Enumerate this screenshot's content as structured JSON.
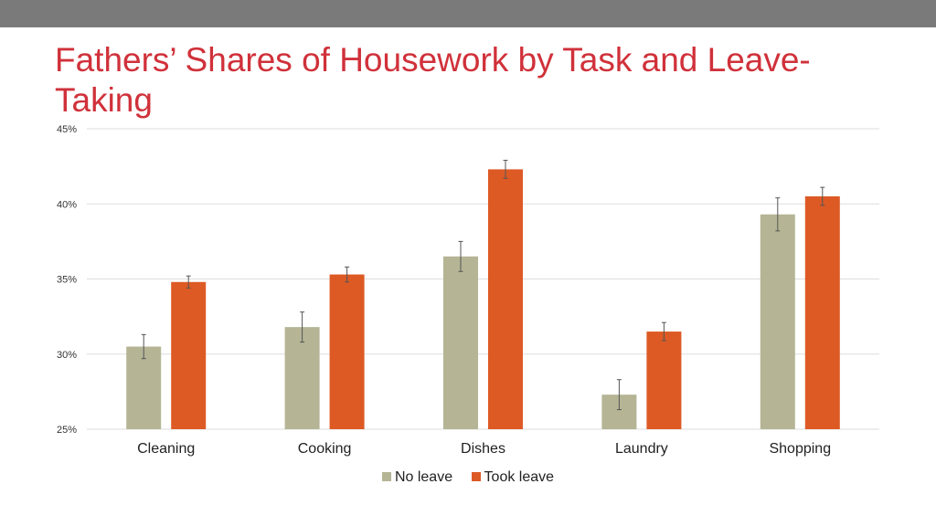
{
  "page": {
    "title": "Fathers’ Shares of Housework by Task and Leave-Taking"
  },
  "chart_data": {
    "type": "bar",
    "categories": [
      "Cleaning",
      "Cooking",
      "Dishes",
      "Laundry",
      "Shopping"
    ],
    "series": [
      {
        "name": "No leave",
        "color": "#b5b595",
        "values": [
          30.5,
          31.8,
          36.5,
          27.3,
          39.3
        ],
        "error": [
          0.8,
          1.0,
          1.0,
          1.0,
          1.1
        ]
      },
      {
        "name": "Took leave",
        "color": "#dd5a25",
        "values": [
          34.8,
          35.3,
          42.3,
          31.5,
          40.5
        ],
        "error": [
          0.4,
          0.5,
          0.6,
          0.6,
          0.6
        ]
      }
    ],
    "ylim": [
      25,
      45
    ],
    "yticks": [
      25,
      30,
      35,
      40,
      45
    ],
    "ytick_labels": [
      "25%",
      "30%",
      "35%",
      "40%",
      "45%"
    ],
    "grid": true,
    "legend_position": "bottom",
    "error_bars": true
  }
}
